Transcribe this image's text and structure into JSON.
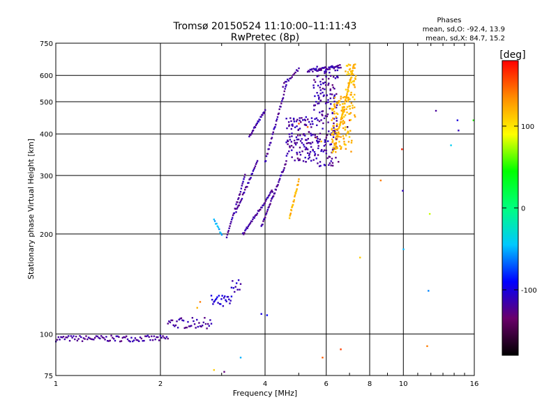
{
  "chart_data": {
    "type": "scatter",
    "title": "Tromsø 20150524 11:10:00–11:11:43",
    "subtitle": "RwPretec (8p)",
    "xlabel": "Frequency [MHz]",
    "ylabel": "Stationary phase Virtual Height [km]",
    "x_scale": "log2",
    "y_scale": "log",
    "xlim": [
      1,
      16
    ],
    "ylim": [
      75,
      750
    ],
    "x_ticks": [
      1,
      2,
      4,
      6,
      8,
      10,
      16
    ],
    "x_tick_labels": [
      "1",
      "2",
      "4",
      "6",
      "8",
      "10",
      "16"
    ],
    "y_ticks": [
      75,
      100,
      200,
      300,
      400,
      500,
      600,
      750
    ],
    "y_tick_labels": [
      "75",
      "100",
      "200",
      "300",
      "400",
      "500",
      "600",
      "750"
    ],
    "grid": true,
    "phases_box": {
      "title": "Phases",
      "line1": "mean, sd,O: -92.4, 13.9",
      "line2": "mean, sd,X:  84.7, 15.2"
    },
    "colorbar": {
      "label": "[deg]",
      "range": [
        -180,
        180
      ],
      "ticks": [
        100,
        0,
        -100
      ],
      "tick_labels": [
        "100",
        "0",
        "-100"
      ],
      "colors": [
        "#000000",
        "#6a006a",
        "#0000ff",
        "#00c8ff",
        "#00ff7f",
        "#00ff00",
        "#ffff00",
        "#ff8c00",
        "#ff0000"
      ]
    },
    "series": [
      {
        "traces": [
          {
            "x0": 1.0,
            "x1": 2.1,
            "y": 97,
            "phase": -120,
            "n": 90,
            "jitter": 2
          },
          {
            "x0": 2.1,
            "x1": 2.8,
            "y": 108,
            "phase": -118,
            "n": 40,
            "jitter": 4
          },
          {
            "x0": 2.8,
            "x1": 3.2,
            "y": 125,
            "phase": -105,
            "n": 25,
            "jitter": 6
          },
          {
            "x0": 3.2,
            "x1": 3.4,
            "y": 140,
            "phase": -110,
            "n": 10,
            "jitter": 6
          }
        ],
        "points": [
          {
            "x": 2.6,
            "y": 125,
            "phase": 140
          },
          {
            "x": 2.55,
            "y": 120,
            "phase": 120
          },
          {
            "x": 2.85,
            "y": 78,
            "phase": 110
          },
          {
            "x": 3.05,
            "y": 77,
            "phase": -130
          },
          {
            "x": 3.4,
            "y": 85,
            "phase": -50
          },
          {
            "x": 3.9,
            "y": 115,
            "phase": -100
          },
          {
            "x": 4.05,
            "y": 114,
            "phase": -90
          },
          {
            "x": 5.85,
            "y": 85,
            "phase": 150
          },
          {
            "x": 6.6,
            "y": 90,
            "phase": 160
          },
          {
            "x": 7.5,
            "y": 170,
            "phase": 110
          },
          {
            "x": 8.6,
            "y": 290,
            "phase": 140
          },
          {
            "x": 9.9,
            "y": 360,
            "phase": 170
          },
          {
            "x": 9.95,
            "y": 270,
            "phase": -110
          },
          {
            "x": 10.0,
            "y": 180,
            "phase": -50
          },
          {
            "x": 11.7,
            "y": 92,
            "phase": 140
          },
          {
            "x": 11.8,
            "y": 135,
            "phase": -60
          },
          {
            "x": 11.9,
            "y": 230,
            "phase": 80
          },
          {
            "x": 12.4,
            "y": 470,
            "phase": -120
          },
          {
            "x": 13.7,
            "y": 370,
            "phase": -40
          },
          {
            "x": 14.3,
            "y": 440,
            "phase": -100
          },
          {
            "x": 14.4,
            "y": 410,
            "phase": -110
          },
          {
            "x": 15.9,
            "y": 440,
            "phase": 50
          }
        ]
      },
      {
        "traces": [
          {
            "x0": 2.85,
            "x1": 3.0,
            "y0": 220,
            "y1": 200,
            "phase": -50,
            "n": 10
          },
          {
            "x0": 3.1,
            "x1": 3.5,
            "y0": 195,
            "y1": 300,
            "phase": -118,
            "n": 30
          },
          {
            "x0": 3.3,
            "x1": 3.8,
            "y0": 235,
            "y1": 330,
            "phase": -118,
            "n": 30
          },
          {
            "x0": 3.45,
            "x1": 4.2,
            "y0": 200,
            "y1": 270,
            "phase": -118,
            "n": 40
          },
          {
            "x0": 3.9,
            "x1": 4.6,
            "y0": 210,
            "y1": 330,
            "phase": -120,
            "n": 40
          },
          {
            "x0": 4.0,
            "x1": 4.6,
            "y0": 330,
            "y1": 560,
            "phase": -118,
            "n": 35
          },
          {
            "x0": 3.6,
            "x1": 4.0,
            "y0": 395,
            "y1": 470,
            "phase": -118,
            "n": 25
          },
          {
            "x0": 4.5,
            "x1": 5.0,
            "y0": 560,
            "y1": 630,
            "phase": -120,
            "n": 15
          },
          {
            "x0": 4.7,
            "x1": 5.0,
            "y0": 225,
            "y1": 290,
            "phase": 120,
            "n": 25
          },
          {
            "x0": 5.3,
            "x1": 6.6,
            "y0": 620,
            "y1": 640,
            "phase": -118,
            "n": 40
          },
          {
            "x0": 6.4,
            "x1": 7.2,
            "y0": 380,
            "y1": 650,
            "phase": 120,
            "n": 60
          }
        ],
        "points": [
          {
            "x": 5.0,
            "y": 430,
            "phase": 150
          },
          {
            "x": 5.3,
            "y": 420,
            "phase": 145
          },
          {
            "x": 5.6,
            "y": 390,
            "phase": 130
          },
          {
            "x": 5.8,
            "y": 380,
            "phase": 120
          },
          {
            "x": 6.9,
            "y": 420,
            "phase": -150
          },
          {
            "x": 6.5,
            "y": 330,
            "phase": -130
          },
          {
            "x": 6.3,
            "y": 360,
            "phase": 100
          },
          {
            "x": 7.0,
            "y": 440,
            "phase": 175
          }
        ]
      },
      {
        "blocks": [
          {
            "x0": 4.6,
            "x1": 5.5,
            "y0": 330,
            "y1": 450,
            "phase": -118,
            "n": 120
          },
          {
            "x0": 5.5,
            "x1": 6.5,
            "y0": 320,
            "y1": 640,
            "phase": -118,
            "n": 180
          },
          {
            "x0": 6.2,
            "x1": 7.1,
            "y0": 350,
            "y1": 520,
            "phase": 120,
            "n": 120
          },
          {
            "x0": 6.8,
            "x1": 7.3,
            "y0": 450,
            "y1": 650,
            "phase": 115,
            "n": 50
          }
        ]
      }
    ]
  }
}
